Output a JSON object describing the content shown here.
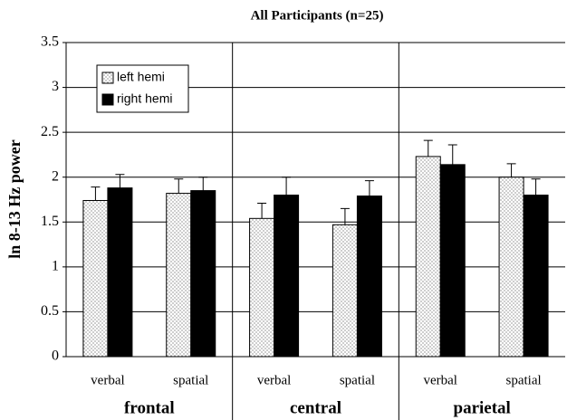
{
  "chart_data": {
    "type": "bar",
    "title": "All Participants (n=25)",
    "y_label": "ln 8-13 Hz power",
    "categories": [
      "verbal",
      "spatial",
      "verbal",
      "spatial",
      "verbal",
      "spatial"
    ],
    "groups": [
      "frontal",
      "central",
      "parietal"
    ],
    "series": [
      {
        "name": "left hemi",
        "color": "#ffffff",
        "pattern": "dots",
        "values": [
          1.74,
          1.82,
          1.54,
          1.47,
          2.23,
          2.0
        ],
        "errors": [
          0.15,
          0.16,
          0.17,
          0.18,
          0.18,
          0.15
        ]
      },
      {
        "name": "right hemi",
        "color": "#000000",
        "values": [
          1.88,
          1.85,
          1.8,
          1.79,
          2.14,
          1.8
        ],
        "errors": [
          0.15,
          0.15,
          0.2,
          0.17,
          0.22,
          0.18
        ]
      }
    ],
    "ylim": [
      0,
      3.5
    ],
    "yticks": [
      0,
      0.5,
      1,
      1.5,
      2,
      2.5,
      3,
      3.5
    ],
    "grid": true,
    "legend": "upper left"
  }
}
